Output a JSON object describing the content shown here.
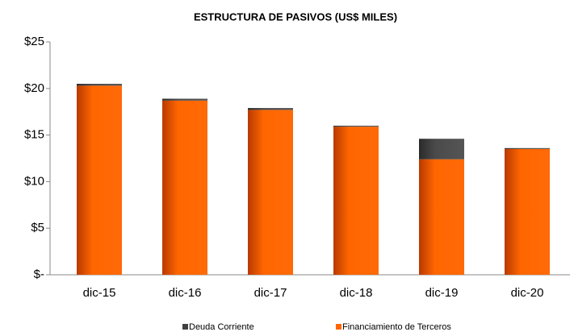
{
  "chart_data": {
    "type": "stacked_bar",
    "title": "ESTRUCTURA DE PASIVOS (US$ MILES)",
    "categories": [
      "dic-15",
      "dic-16",
      "dic-17",
      "dic-18",
      "dic-19",
      "dic-20"
    ],
    "series": [
      {
        "name": "Financiamiento de Terceros",
        "color": "#ff6600",
        "values": [
          20.3,
          18.7,
          17.7,
          15.9,
          12.4,
          13.5
        ]
      },
      {
        "name": "Deuda Corriente",
        "color": "#404040",
        "values": [
          0.2,
          0.2,
          0.2,
          0.1,
          2.2,
          0.1
        ]
      }
    ],
    "ylim": [
      0,
      25
    ],
    "yticks": [
      {
        "value": 0,
        "label": "$-"
      },
      {
        "value": 5,
        "label": "$5"
      },
      {
        "value": 10,
        "label": "$10"
      },
      {
        "value": 15,
        "label": "$15"
      },
      {
        "value": 20,
        "label": "$20"
      },
      {
        "value": 25,
        "label": "$25"
      }
    ],
    "legend": "bottom"
  }
}
